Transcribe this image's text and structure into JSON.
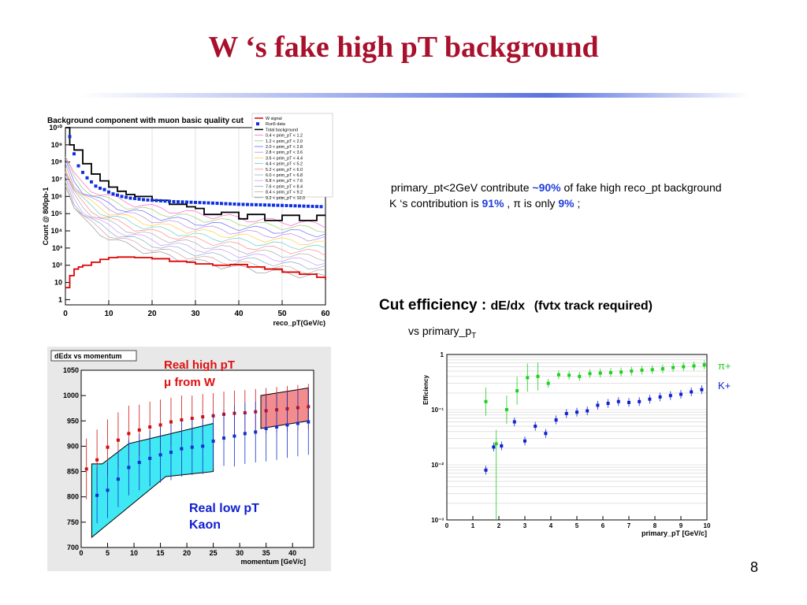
{
  "slide": {
    "title": "W ‘s fake high pT background",
    "page_number": "8",
    "note_line1": {
      "pre": "primary_pt<2GeV contribute ",
      "tilde": "~",
      "value": "90%",
      "post": " of fake high reco_pt background"
    },
    "note_line2": {
      "pre": "K ‘s contribution is ",
      "k_value": "91%",
      "mid": " , π is only ",
      "pi_value": "9%",
      "post": " ;"
    },
    "cut_title": "Cut efficiency : ",
    "cut_var": "dE/dx",
    "cut_req": "(fvtx track required)",
    "cut_sub_pre": "vs primary_p",
    "cut_sub_sub": "T",
    "colors": {
      "title": "#a8102c",
      "accent": "#1f3fd8"
    }
  },
  "chart_data": [
    {
      "type": "line",
      "title": "Background component with muon basic quality cut",
      "xlabel": "reco_pT(GeV/c)",
      "ylabel": "Count @ 800pb-1",
      "yscale": "log",
      "xlim": [
        0,
        60
      ],
      "ylim": [
        0.5,
        10000000000.0
      ],
      "xticks": [
        "0",
        "10",
        "20",
        "30",
        "40",
        "50",
        "60"
      ],
      "yticks": [
        "1",
        "10",
        "10²",
        "10³",
        "10⁴",
        "10⁵",
        "10⁶",
        "10⁷",
        "10⁸",
        "10⁹",
        "10¹⁰"
      ],
      "legend": [
        "W signal",
        "Run5 data",
        "Total background",
        "0.4 < prim_pT < 1.2",
        "1.2 < prim_pT < 2.0",
        "2.0 < prim_pT < 2.8",
        "2.8 < prim_pT < 3.6",
        "3.6 < prim_pT < 4.4",
        "4.4 < prim_pT < 5.2",
        "5.2 < prim_pT < 6.0",
        "6.0 < prim_pT < 6.8",
        "6.8 < prim_pT < 7.6",
        "7.6 < prim_pT < 8.4",
        "8.4 < prim_pT < 9.2",
        "9.2 < prim_pT < 10.0"
      ],
      "series": [
        {
          "name": "Run5 data",
          "x": [
            1,
            2,
            3,
            4,
            5,
            6,
            7,
            8,
            9,
            10,
            11,
            12,
            13,
            14,
            15,
            16,
            17,
            18,
            19,
            20,
            21,
            22,
            23,
            24,
            25,
            26,
            27,
            28,
            29,
            30,
            31,
            32,
            33,
            34,
            35,
            36,
            37,
            38,
            39,
            40,
            41,
            42,
            43,
            44,
            45,
            46,
            47,
            48,
            49,
            50,
            51,
            52,
            53,
            54,
            55,
            56,
            57,
            58,
            59
          ],
          "y": [
            3000000000.0,
            300000000.0,
            60000000.0,
            25000000.0,
            12000000.0,
            7000000.0,
            4000000.0,
            3000000.0,
            2500000.0,
            1800000.0,
            1400000.0,
            1200000.0,
            1000000.0,
            900000.0,
            800000.0,
            750000.0,
            700000.0,
            650000.0,
            620000.0,
            600000.0,
            580000.0,
            560000.0,
            540000.0,
            520000.0,
            500000.0,
            490000.0,
            480000.0,
            470000.0,
            460000.0,
            450000.0,
            440000.0,
            430000.0,
            420000.0,
            410000.0,
            400000.0,
            390000.0,
            380000.0,
            370000.0,
            360000.0,
            350000.0,
            345000.0,
            340000.0,
            335000.0,
            330000.0,
            325000.0,
            320000.0,
            315000.0,
            310000.0,
            305000.0,
            300000.0,
            295000.0,
            290000.0,
            285000.0,
            280000.0,
            275000.0,
            270000.0,
            265000.0,
            260000.0,
            255000.0
          ]
        },
        {
          "name": "Total background",
          "x": [
            0,
            1,
            2,
            4,
            6,
            8,
            10,
            12,
            14,
            16,
            20,
            24,
            28,
            30,
            32,
            36,
            40,
            42,
            46,
            50,
            54,
            58,
            60
          ],
          "y": [
            10000000000.0,
            1000000000.0,
            500000000.0,
            80000000.0,
            20000000.0,
            8000000.0,
            3500000.0,
            2000000.0,
            1300000.0,
            1000000.0,
            600000.0,
            350000.0,
            250000.0,
            200000.0,
            90000.0,
            120000.0,
            50000.0,
            90000.0,
            40000.0,
            80000.0,
            40000.0,
            80000.0,
            80000.0
          ]
        },
        {
          "name": "W signal",
          "x": [
            0,
            1,
            2,
            3,
            4,
            6,
            8,
            10,
            12,
            14,
            16,
            20,
            24,
            28,
            30,
            34,
            38,
            42,
            46,
            50,
            54,
            58,
            60
          ],
          "y": [
            5,
            25,
            60,
            80,
            100,
            150,
            220,
            280,
            300,
            300,
            280,
            240,
            170,
            150,
            120,
            100,
            110,
            80,
            60,
            40,
            30,
            20,
            15
          ]
        }
      ]
    },
    {
      "type": "scatter",
      "title": "dEdx vs momentum",
      "xlabel": "momentum [GeV/c]",
      "ylabel": "",
      "xlim": [
        0,
        44
      ],
      "ylim": [
        700,
        1050
      ],
      "xticks": [
        "0",
        "5",
        "10",
        "15",
        "20",
        "25",
        "30",
        "35",
        "40"
      ],
      "yticks": [
        "700",
        "750",
        "800",
        "850",
        "900",
        "950",
        "1000",
        "1050"
      ],
      "annotations": [
        "Real high pT",
        "μ from W",
        "Real low pT",
        "Kaon"
      ],
      "series": [
        {
          "name": "",
          "color": "#d01010",
          "x": [
            1,
            3,
            5,
            7,
            9,
            11,
            13,
            15,
            17,
            19,
            21,
            23,
            25,
            27,
            29,
            31,
            33,
            35,
            37,
            39,
            41,
            43
          ],
          "y": [
            855,
            873,
            898,
            912,
            925,
            932,
            938,
            942,
            948,
            952,
            955,
            958,
            960,
            963,
            965,
            966,
            968,
            970,
            972,
            974,
            976,
            978
          ],
          "err": [
            60,
            60,
            55,
            55,
            55,
            50,
            50,
            50,
            48,
            48,
            45,
            45,
            45,
            45,
            45,
            45,
            45,
            45,
            45,
            45,
            45,
            45
          ]
        },
        {
          "name": "",
          "color": "#1030d0",
          "x": [
            3,
            5,
            7,
            9,
            11,
            13,
            15,
            17,
            19,
            21,
            23,
            25,
            27,
            29,
            31,
            33,
            35,
            37,
            39,
            41,
            43
          ],
          "y": [
            803,
            813,
            835,
            858,
            868,
            876,
            883,
            888,
            895,
            898,
            900,
            910,
            916,
            920,
            925,
            928,
            935,
            938,
            942,
            945,
            948
          ],
          "err": [
            55,
            55,
            55,
            55,
            55,
            55,
            55,
            55,
            55,
            55,
            55,
            55,
            55,
            60,
            60,
            60,
            65,
            65,
            65,
            65,
            65
          ]
        }
      ]
    },
    {
      "type": "scatter",
      "title": "",
      "xlabel": "primary_pT [GeV/c]",
      "ylabel": "Efficiency",
      "yscale": "log",
      "xlim": [
        0,
        10
      ],
      "ylim": [
        0.001,
        1
      ],
      "xticks": [
        "0",
        "1",
        "2",
        "3",
        "4",
        "5",
        "6",
        "7",
        "8",
        "9",
        "10"
      ],
      "yticks": [
        "10⁻³",
        "10⁻²",
        "10⁻¹",
        "1"
      ],
      "legend": [
        "π+",
        "K+"
      ],
      "series": [
        {
          "name": "π+",
          "color": "#20d020",
          "x": [
            1.5,
            1.9,
            2.3,
            2.7,
            3.1,
            3.5,
            3.9,
            4.3,
            4.7,
            5.1,
            5.5,
            5.9,
            6.3,
            6.7,
            7.1,
            7.5,
            7.9,
            8.3,
            8.7,
            9.1,
            9.5,
            9.9
          ],
          "y": [
            0.14,
            0.024,
            0.1,
            0.22,
            0.38,
            0.4,
            0.3,
            0.43,
            0.42,
            0.4,
            0.45,
            0.46,
            0.47,
            0.48,
            0.5,
            0.52,
            0.53,
            0.55,
            0.58,
            0.6,
            0.62,
            0.65
          ]
        },
        {
          "name": "K+",
          "color": "#1020d0",
          "x": [
            1.5,
            1.8,
            2.1,
            2.6,
            3.0,
            3.4,
            3.8,
            4.2,
            4.6,
            5.0,
            5.4,
            5.8,
            6.2,
            6.6,
            7.0,
            7.4,
            7.8,
            8.2,
            8.6,
            9.0,
            9.4,
            9.8
          ],
          "y": [
            0.008,
            0.021,
            0.022,
            0.06,
            0.027,
            0.05,
            0.037,
            0.065,
            0.085,
            0.09,
            0.095,
            0.12,
            0.13,
            0.14,
            0.135,
            0.14,
            0.155,
            0.17,
            0.18,
            0.19,
            0.21,
            0.23
          ]
        }
      ]
    }
  ]
}
